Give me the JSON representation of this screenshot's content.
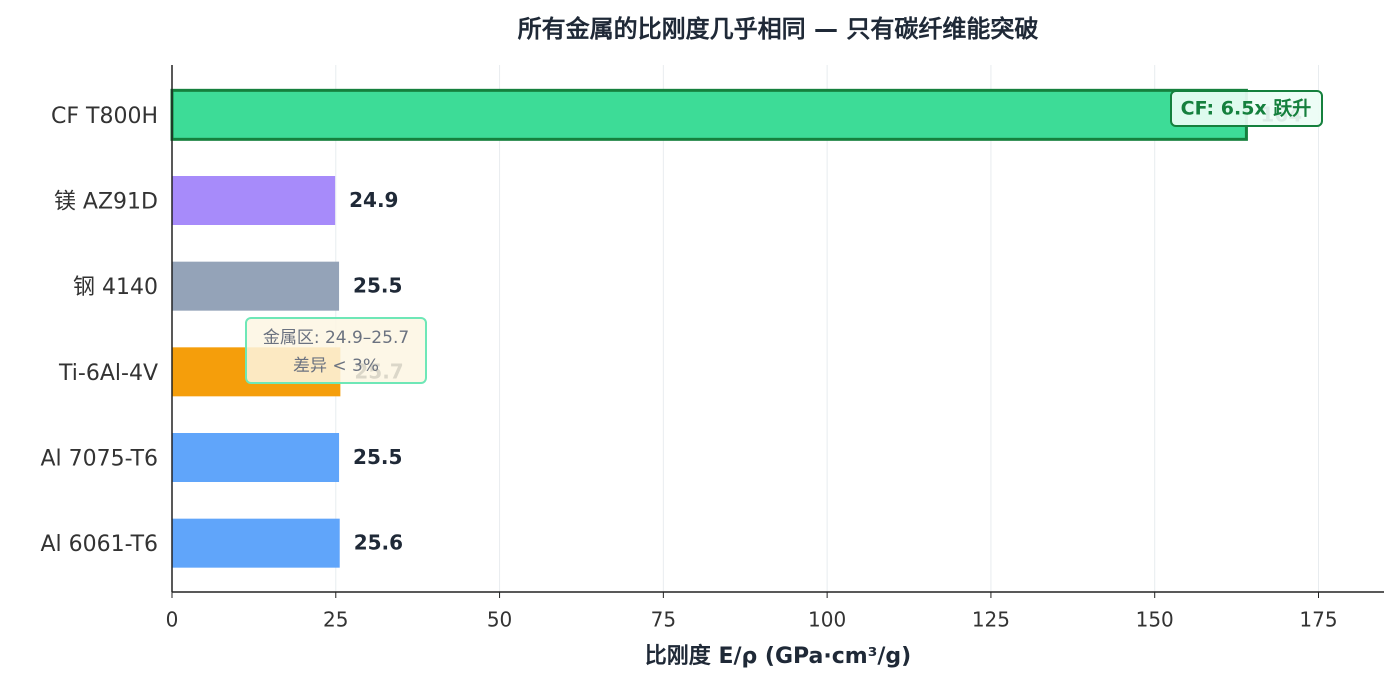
{
  "chart_data": {
    "type": "barh",
    "title": "所有金属的比刚度几乎相同 — 只有碳纤维能突破",
    "x_label": "比刚度 E/ρ (GPa·cm³/g)",
    "categories": [
      "CF T800H",
      "镁 AZ91D",
      "钢 4140",
      "Ti-6Al-4V",
      "Al 7075-T6",
      "Al 6061-T6"
    ],
    "values": [
      164,
      24.9,
      25.5,
      25.7,
      25.5,
      25.6
    ],
    "colors": [
      "#3ddc97",
      "#a78bfa",
      "#94a3b8",
      "#f59e0b",
      "#60a5fa",
      "#60a5fa"
    ],
    "xlim": [
      0,
      185
    ],
    "xticks": [
      0,
      25,
      50,
      75,
      100,
      125,
      150,
      175
    ],
    "grid": true,
    "annotations": [
      "CF: 6.5x 跃升",
      "金属区: 24.9–25.7",
      "差异 < 3%"
    ]
  }
}
